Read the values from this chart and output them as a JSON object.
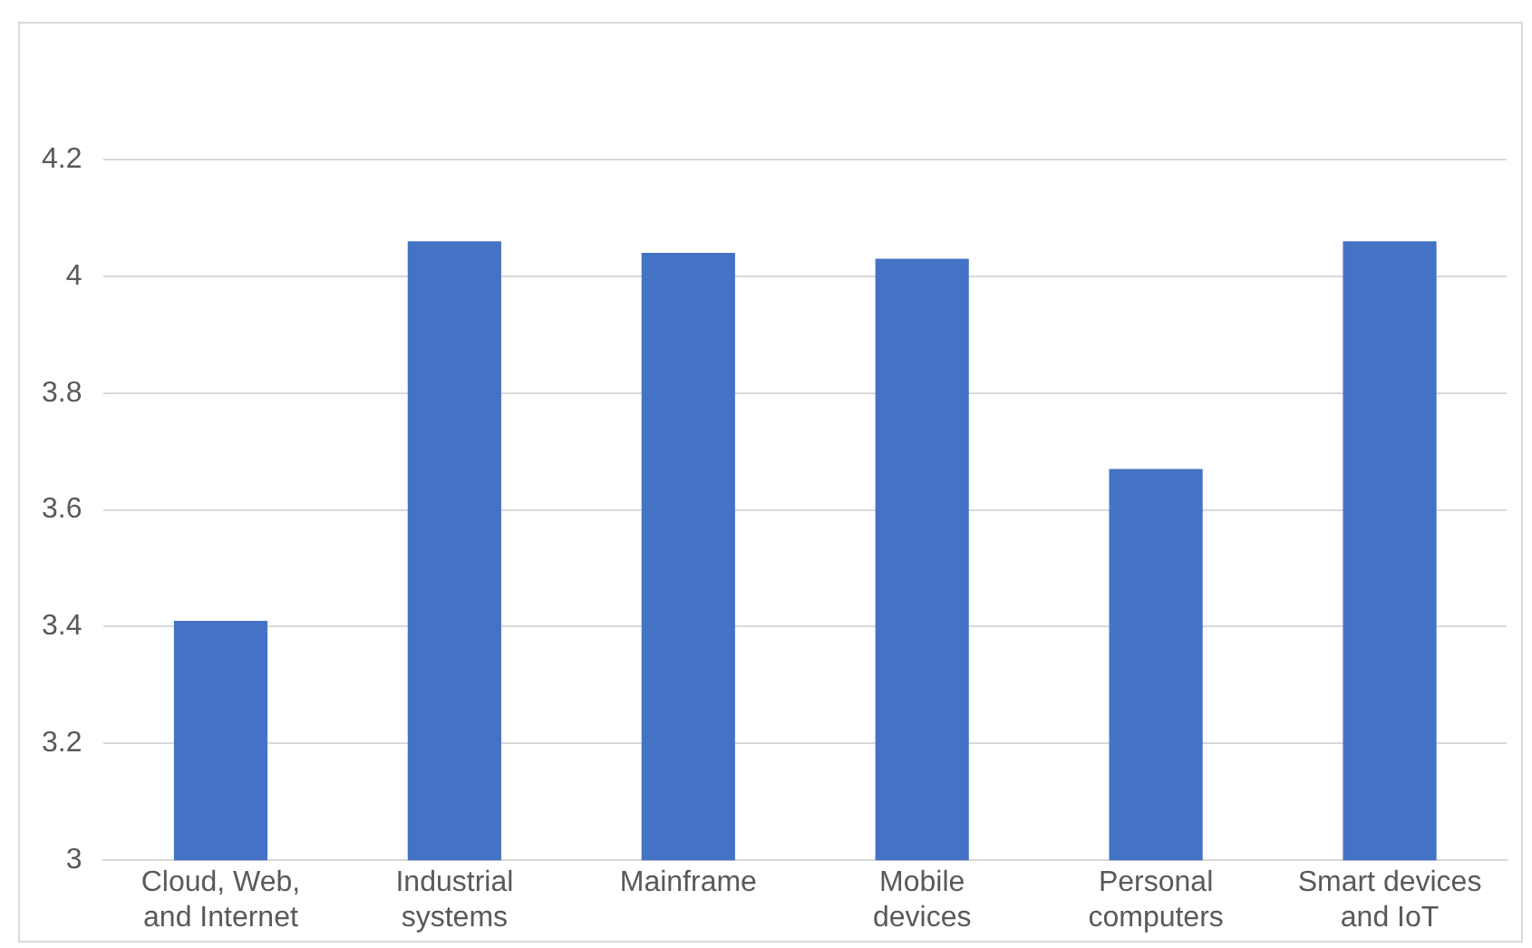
{
  "chart_data": {
    "type": "bar",
    "categories": [
      "Cloud, Web, and Internet",
      "Industrial systems",
      "Mainframe",
      "Mobile devices",
      "Personal computers",
      "Smart devices and IoT"
    ],
    "values": [
      3.41,
      4.06,
      4.04,
      4.03,
      3.67,
      4.06
    ],
    "color": "#4472c4",
    "ylim": [
      3,
      4.2
    ],
    "yticks": [
      3,
      3.2,
      3.4,
      3.6,
      3.8,
      4,
      4.2
    ],
    "grid": "y"
  }
}
